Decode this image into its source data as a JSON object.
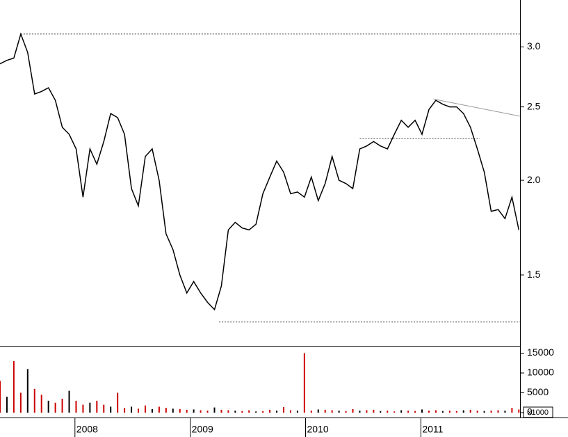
{
  "chart_data": [
    {
      "type": "line",
      "log_scale": true,
      "color": "#000000",
      "xlim": [
        2007.35,
        2011.86
      ],
      "ylim": [
        1.209,
        3.46
      ],
      "yticks": [
        1.5,
        {
          "value": 2,
          "label": "2.0"
        },
        2.5,
        {
          "value": 3,
          "label": "3.0"
        }
      ],
      "x": [
        2007.35,
        2007.41,
        2007.47,
        2007.53,
        2007.59,
        2007.65,
        2007.71,
        2007.77,
        2007.83,
        2007.89,
        2007.95,
        2008.01,
        2008.07,
        2008.13,
        2008.19,
        2008.25,
        2008.31,
        2008.37,
        2008.43,
        2008.49,
        2008.55,
        2008.61,
        2008.67,
        2008.73,
        2008.79,
        2008.85,
        2008.91,
        2008.97,
        2009.03,
        2009.09,
        2009.15,
        2009.21,
        2009.27,
        2009.33,
        2009.39,
        2009.45,
        2009.51,
        2009.57,
        2009.63,
        2009.69,
        2009.75,
        2009.81,
        2009.87,
        2009.93,
        2009.99,
        2010.05,
        2010.11,
        2010.17,
        2010.23,
        2010.29,
        2010.35,
        2010.41,
        2010.47,
        2010.53,
        2010.59,
        2010.65,
        2010.71,
        2010.77,
        2010.83,
        2010.89,
        2010.95,
        2011.01,
        2011.07,
        2011.13,
        2011.19,
        2011.25,
        2011.31,
        2011.37,
        2011.43,
        2011.49,
        2011.55,
        2011.61,
        2011.67,
        2011.73,
        2011.79,
        2011.85
      ],
      "values": [
        2.85,
        2.88,
        2.9,
        3.12,
        2.95,
        2.6,
        2.62,
        2.65,
        2.55,
        2.35,
        2.3,
        2.2,
        1.9,
        2.2,
        2.1,
        2.25,
        2.45,
        2.42,
        2.3,
        1.95,
        1.85,
        2.15,
        2.2,
        2.0,
        1.7,
        1.62,
        1.5,
        1.42,
        1.47,
        1.42,
        1.38,
        1.35,
        1.45,
        1.72,
        1.76,
        1.73,
        1.72,
        1.75,
        1.92,
        2.02,
        2.12,
        2.05,
        1.92,
        1.93,
        1.9,
        2.02,
        1.88,
        1.98,
        2.15,
        2.0,
        1.98,
        1.95,
        2.2,
        2.22,
        2.25,
        2.22,
        2.2,
        2.3,
        2.4,
        2.35,
        2.4,
        2.3,
        2.48,
        2.55,
        2.52,
        2.5,
        2.5,
        2.45,
        2.35,
        2.2,
        2.05,
        1.82,
        1.83,
        1.78,
        1.9,
        1.72
      ],
      "hlines": [
        {
          "y": 3.12,
          "x": [
            2007.53,
            2011.86
          ]
        },
        {
          "y": 1.3,
          "x": [
            2009.25,
            2011.86
          ]
        },
        {
          "y": 2.27,
          "x": [
            2010.47,
            2011.51
          ]
        }
      ],
      "trendline": {
        "x": [
          2011.11,
          2011.86
        ],
        "y": [
          2.56,
          2.43
        ]
      }
    },
    {
      "type": "bar",
      "color": "#cc0000",
      "xlim": [
        2007.35,
        2011.86
      ],
      "xticks": [
        2008,
        2009,
        2010,
        2011
      ],
      "ylim": [
        -1230,
        16840
      ],
      "yticks": [
        0,
        5000,
        10000,
        15000
      ],
      "unit_label": "x1000",
      "x": [
        2007.35,
        2007.41,
        2007.47,
        2007.53,
        2007.59,
        2007.65,
        2007.71,
        2007.77,
        2007.83,
        2007.89,
        2007.95,
        2008.01,
        2008.07,
        2008.13,
        2008.19,
        2008.25,
        2008.31,
        2008.37,
        2008.43,
        2008.49,
        2008.55,
        2008.61,
        2008.67,
        2008.73,
        2008.79,
        2008.85,
        2008.91,
        2008.97,
        2009.03,
        2009.09,
        2009.15,
        2009.21,
        2009.27,
        2009.33,
        2009.39,
        2009.45,
        2009.51,
        2009.57,
        2009.63,
        2009.69,
        2009.75,
        2009.81,
        2009.87,
        2009.93,
        2009.99,
        2010.05,
        2010.11,
        2010.17,
        2010.23,
        2010.29,
        2010.35,
        2010.41,
        2010.47,
        2010.53,
        2010.59,
        2010.65,
        2010.71,
        2010.77,
        2010.83,
        2010.89,
        2010.95,
        2011.01,
        2011.07,
        2011.13,
        2011.19,
        2011.25,
        2011.31,
        2011.37,
        2011.43,
        2011.49,
        2011.55,
        2011.61,
        2011.67,
        2011.73,
        2011.79,
        2011.85
      ],
      "values": [
        8000,
        4000,
        13000,
        5000,
        11000,
        6000,
        4500,
        3000,
        2500,
        3500,
        5500,
        3000,
        2000,
        2500,
        3000,
        2000,
        1500,
        5000,
        1200,
        1500,
        1000,
        1800,
        900,
        1500,
        1200,
        1000,
        900,
        700,
        800,
        600,
        500,
        1300,
        700,
        600,
        500,
        400,
        600,
        300,
        400,
        700,
        500,
        1400,
        600,
        500,
        15000,
        500,
        800,
        700,
        600,
        500,
        400,
        900,
        500,
        600,
        700,
        400,
        500,
        300,
        600,
        500,
        400,
        800,
        500,
        600,
        400,
        500,
        400,
        600,
        700,
        500,
        400,
        500,
        600,
        500,
        1200,
        800
      ]
    }
  ]
}
